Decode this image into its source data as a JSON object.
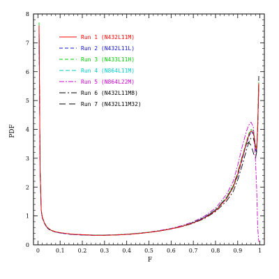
{
  "chart_data": {
    "type": "line",
    "xlabel": "F",
    "ylabel": "PDF",
    "xlim": [
      -0.02,
      1.02
    ],
    "ylim": [
      0,
      8
    ],
    "xticks": [
      0,
      0.1,
      0.2,
      0.3,
      0.4,
      0.5,
      0.6,
      0.7,
      0.8,
      0.9,
      1
    ],
    "xtick_labels": [
      "0",
      "0.1",
      "0.2",
      "0.3",
      "0.4",
      "0.5",
      "0.6",
      "0.7",
      "0.8",
      "0.9",
      "1"
    ],
    "yticks": [
      0,
      1,
      2,
      3,
      4,
      5,
      6,
      7,
      8
    ],
    "ytick_labels": [
      "0",
      "1",
      "2",
      "3",
      "4",
      "5",
      "6",
      "7",
      "8"
    ],
    "grid": false,
    "legend_position": "top-left",
    "x": [
      0.005,
      0.01,
      0.015,
      0.02,
      0.03,
      0.04,
      0.05,
      0.06,
      0.08,
      0.1,
      0.15,
      0.2,
      0.25,
      0.3,
      0.35,
      0.4,
      0.45,
      0.5,
      0.55,
      0.6,
      0.65,
      0.7,
      0.75,
      0.8,
      0.85,
      0.88,
      0.9,
      0.92,
      0.94,
      0.95,
      0.96,
      0.97,
      0.975,
      0.98,
      0.985,
      0.99,
      0.995
    ],
    "series": [
      {
        "name": "Run 1 (N432L11M)",
        "color": "#ff0000",
        "dash": "none",
        "values": [
          7.6,
          2.6,
          1.2,
          0.95,
          0.75,
          0.62,
          0.55,
          0.5,
          0.45,
          0.42,
          0.37,
          0.35,
          0.33,
          0.33,
          0.34,
          0.36,
          0.39,
          0.43,
          0.48,
          0.55,
          0.64,
          0.76,
          0.93,
          1.18,
          1.6,
          2.0,
          2.45,
          3.0,
          3.55,
          3.8,
          3.95,
          3.9,
          3.7,
          3.4,
          3.3,
          4.1,
          5.6
        ]
      },
      {
        "name": "Run 2 (N432L11L)",
        "color": "#1111cc",
        "dash": "5,3",
        "values": [
          7.5,
          2.5,
          1.18,
          0.93,
          0.73,
          0.6,
          0.53,
          0.49,
          0.44,
          0.41,
          0.36,
          0.34,
          0.33,
          0.33,
          0.34,
          0.36,
          0.39,
          0.43,
          0.48,
          0.55,
          0.64,
          0.77,
          0.95,
          1.2,
          1.62,
          2.0,
          2.4,
          2.95,
          3.5,
          3.75,
          3.9,
          3.85,
          3.65,
          3.35,
          3.25,
          4.0,
          5.5
        ]
      },
      {
        "name": "Run 3 (N433L11H)",
        "color": "#00cc00",
        "dash": "5,3",
        "values": [
          7.7,
          2.7,
          1.22,
          0.96,
          0.76,
          0.63,
          0.56,
          0.51,
          0.45,
          0.42,
          0.37,
          0.35,
          0.34,
          0.34,
          0.35,
          0.37,
          0.4,
          0.44,
          0.49,
          0.56,
          0.65,
          0.78,
          0.96,
          1.22,
          1.65,
          2.05,
          2.5,
          3.05,
          3.6,
          3.85,
          4.0,
          3.95,
          3.75,
          3.45,
          3.35,
          4.2,
          5.7
        ]
      },
      {
        "name": "Run 4 (N864L11M)",
        "color": "#00cccc",
        "dash": "6,3",
        "values": [
          7.4,
          2.55,
          1.19,
          0.94,
          0.74,
          0.61,
          0.54,
          0.5,
          0.44,
          0.41,
          0.36,
          0.34,
          0.33,
          0.33,
          0.34,
          0.36,
          0.39,
          0.43,
          0.48,
          0.55,
          0.64,
          0.77,
          0.95,
          1.2,
          1.6,
          1.98,
          2.42,
          2.98,
          3.52,
          3.78,
          3.92,
          3.88,
          3.68,
          3.38,
          3.28,
          4.05,
          5.55
        ]
      },
      {
        "name": "Run 5 (N864L22M)",
        "color": "#cc00cc",
        "dash": "7,2,2,2",
        "values": [
          7.6,
          2.6,
          1.2,
          0.95,
          0.75,
          0.62,
          0.55,
          0.5,
          0.45,
          0.42,
          0.37,
          0.35,
          0.34,
          0.34,
          0.35,
          0.37,
          0.4,
          0.44,
          0.5,
          0.57,
          0.67,
          0.8,
          0.99,
          1.27,
          1.75,
          2.2,
          2.75,
          3.4,
          3.95,
          4.15,
          4.25,
          4.1,
          3.7,
          2.9,
          2.0,
          0.6,
          0.1
        ]
      },
      {
        "name": "Run 6 (N432L11M8)",
        "color": "#000000",
        "dash": "9,3,2,3",
        "values": [
          7.6,
          2.6,
          1.2,
          0.95,
          0.75,
          0.62,
          0.55,
          0.5,
          0.45,
          0.42,
          0.37,
          0.35,
          0.33,
          0.33,
          0.34,
          0.36,
          0.39,
          0.43,
          0.48,
          0.55,
          0.63,
          0.75,
          0.91,
          1.15,
          1.52,
          1.85,
          2.25,
          2.75,
          3.3,
          3.55,
          3.7,
          3.7,
          3.55,
          3.3,
          3.2,
          4.0,
          5.5
        ]
      },
      {
        "name": "Run 7 (N432L11M32)",
        "color": "#000000",
        "dash": "9,5",
        "values": [
          7.5,
          2.55,
          1.19,
          0.94,
          0.74,
          0.61,
          0.54,
          0.5,
          0.44,
          0.41,
          0.36,
          0.34,
          0.33,
          0.33,
          0.34,
          0.36,
          0.39,
          0.43,
          0.48,
          0.55,
          0.64,
          0.77,
          0.95,
          1.21,
          1.65,
          2.05,
          2.5,
          3.05,
          3.5,
          3.55,
          3.45,
          3.2,
          3.05,
          3.0,
          3.2,
          4.2,
          5.85
        ]
      }
    ]
  }
}
